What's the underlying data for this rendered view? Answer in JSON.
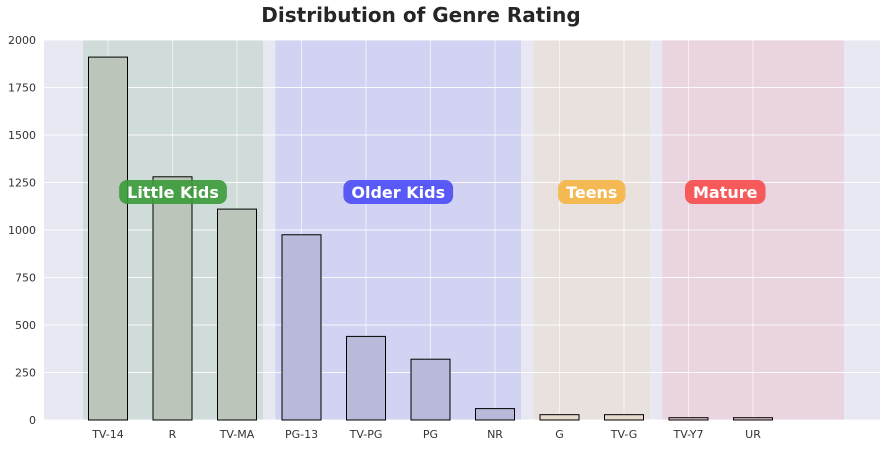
{
  "chart_data": {
    "type": "bar",
    "title": "Distribution of Genre Rating",
    "xlabel": "",
    "ylabel": "",
    "categories": [
      "TV-14",
      "R",
      "TV-MA",
      "PG-13",
      "TV-PG",
      "PG",
      "NR",
      "G",
      "TV-G",
      "TV-Y7",
      "UR"
    ],
    "values": [
      1910,
      1280,
      1110,
      975,
      440,
      320,
      60,
      28,
      28,
      12,
      12
    ],
    "ylim": [
      0,
      2000
    ],
    "yticks": [
      0,
      250,
      500,
      750,
      1000,
      1250,
      1500,
      1750,
      2000
    ],
    "grid": true,
    "groups": [
      {
        "label": "Little Kids",
        "members": [
          "TV-14",
          "R",
          "TV-MA"
        ],
        "band_color": "#2e8b3c",
        "label_color": "#3a9a3a",
        "bar_color": "#bcc5ba"
      },
      {
        "label": "Older Kids",
        "members": [
          "PG-13",
          "TV-PG",
          "PG",
          "NR"
        ],
        "band_color": "#3c3cf5",
        "label_color": "#4b4bf5",
        "bar_color": "#b9b9d9"
      },
      {
        "label": "Teens",
        "members": [
          "G",
          "TV-G"
        ],
        "band_color": "#f0b55a",
        "label_color": "#f6b545",
        "bar_color": "#e5dccb"
      },
      {
        "label": "Mature",
        "members": [
          "TV-Y7",
          "UR"
        ],
        "band_color": "#f0506a",
        "label_color": "#f74b4b",
        "bar_color": "#e6c4cd"
      }
    ],
    "colors": {
      "plot_bg": "#e8e8f2",
      "grid": "#ffffff",
      "bar_edge": "#000000",
      "title": "#262626",
      "tick": "#333333"
    }
  }
}
